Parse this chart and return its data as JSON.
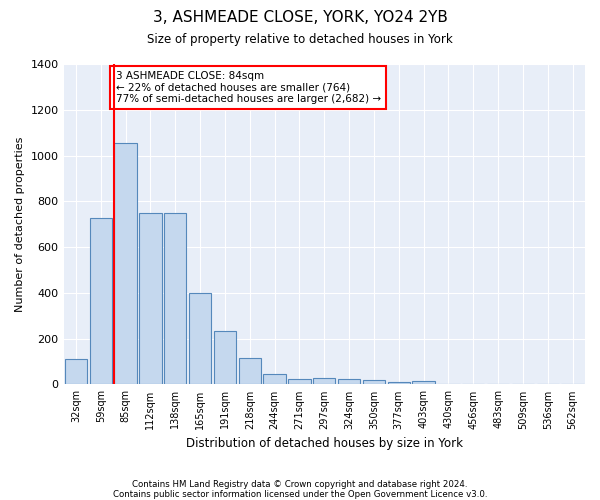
{
  "title": "3, ASHMEADE CLOSE, YORK, YO24 2YB",
  "subtitle": "Size of property relative to detached houses in York",
  "xlabel": "Distribution of detached houses by size in York",
  "ylabel": "Number of detached properties",
  "bar_color": "#c5d8ee",
  "bar_edge_color": "#5588bb",
  "background_color": "#e8eef8",
  "grid_color": "#ffffff",
  "red_line_bar_index": 2,
  "annotation_text": "3 ASHMEADE CLOSE: 84sqm\n← 22% of detached houses are smaller (764)\n77% of semi-detached houses are larger (2,682) →",
  "categories": [
    "32sqm",
    "59sqm",
    "85sqm",
    "112sqm",
    "138sqm",
    "165sqm",
    "191sqm",
    "218sqm",
    "244sqm",
    "271sqm",
    "297sqm",
    "324sqm",
    "350sqm",
    "377sqm",
    "403sqm",
    "430sqm",
    "456sqm",
    "483sqm",
    "509sqm",
    "536sqm",
    "562sqm"
  ],
  "values": [
    110,
    725,
    1055,
    750,
    750,
    400,
    235,
    115,
    45,
    25,
    30,
    25,
    20,
    10,
    15,
    0,
    0,
    0,
    0,
    0,
    0
  ],
  "footer_line1": "Contains HM Land Registry data © Crown copyright and database right 2024.",
  "footer_line2": "Contains public sector information licensed under the Open Government Licence v3.0.",
  "ylim": [
    0,
    1400
  ],
  "yticks": [
    0,
    200,
    400,
    600,
    800,
    1000,
    1200,
    1400
  ],
  "figsize": [
    6.0,
    5.0
  ],
  "dpi": 100
}
